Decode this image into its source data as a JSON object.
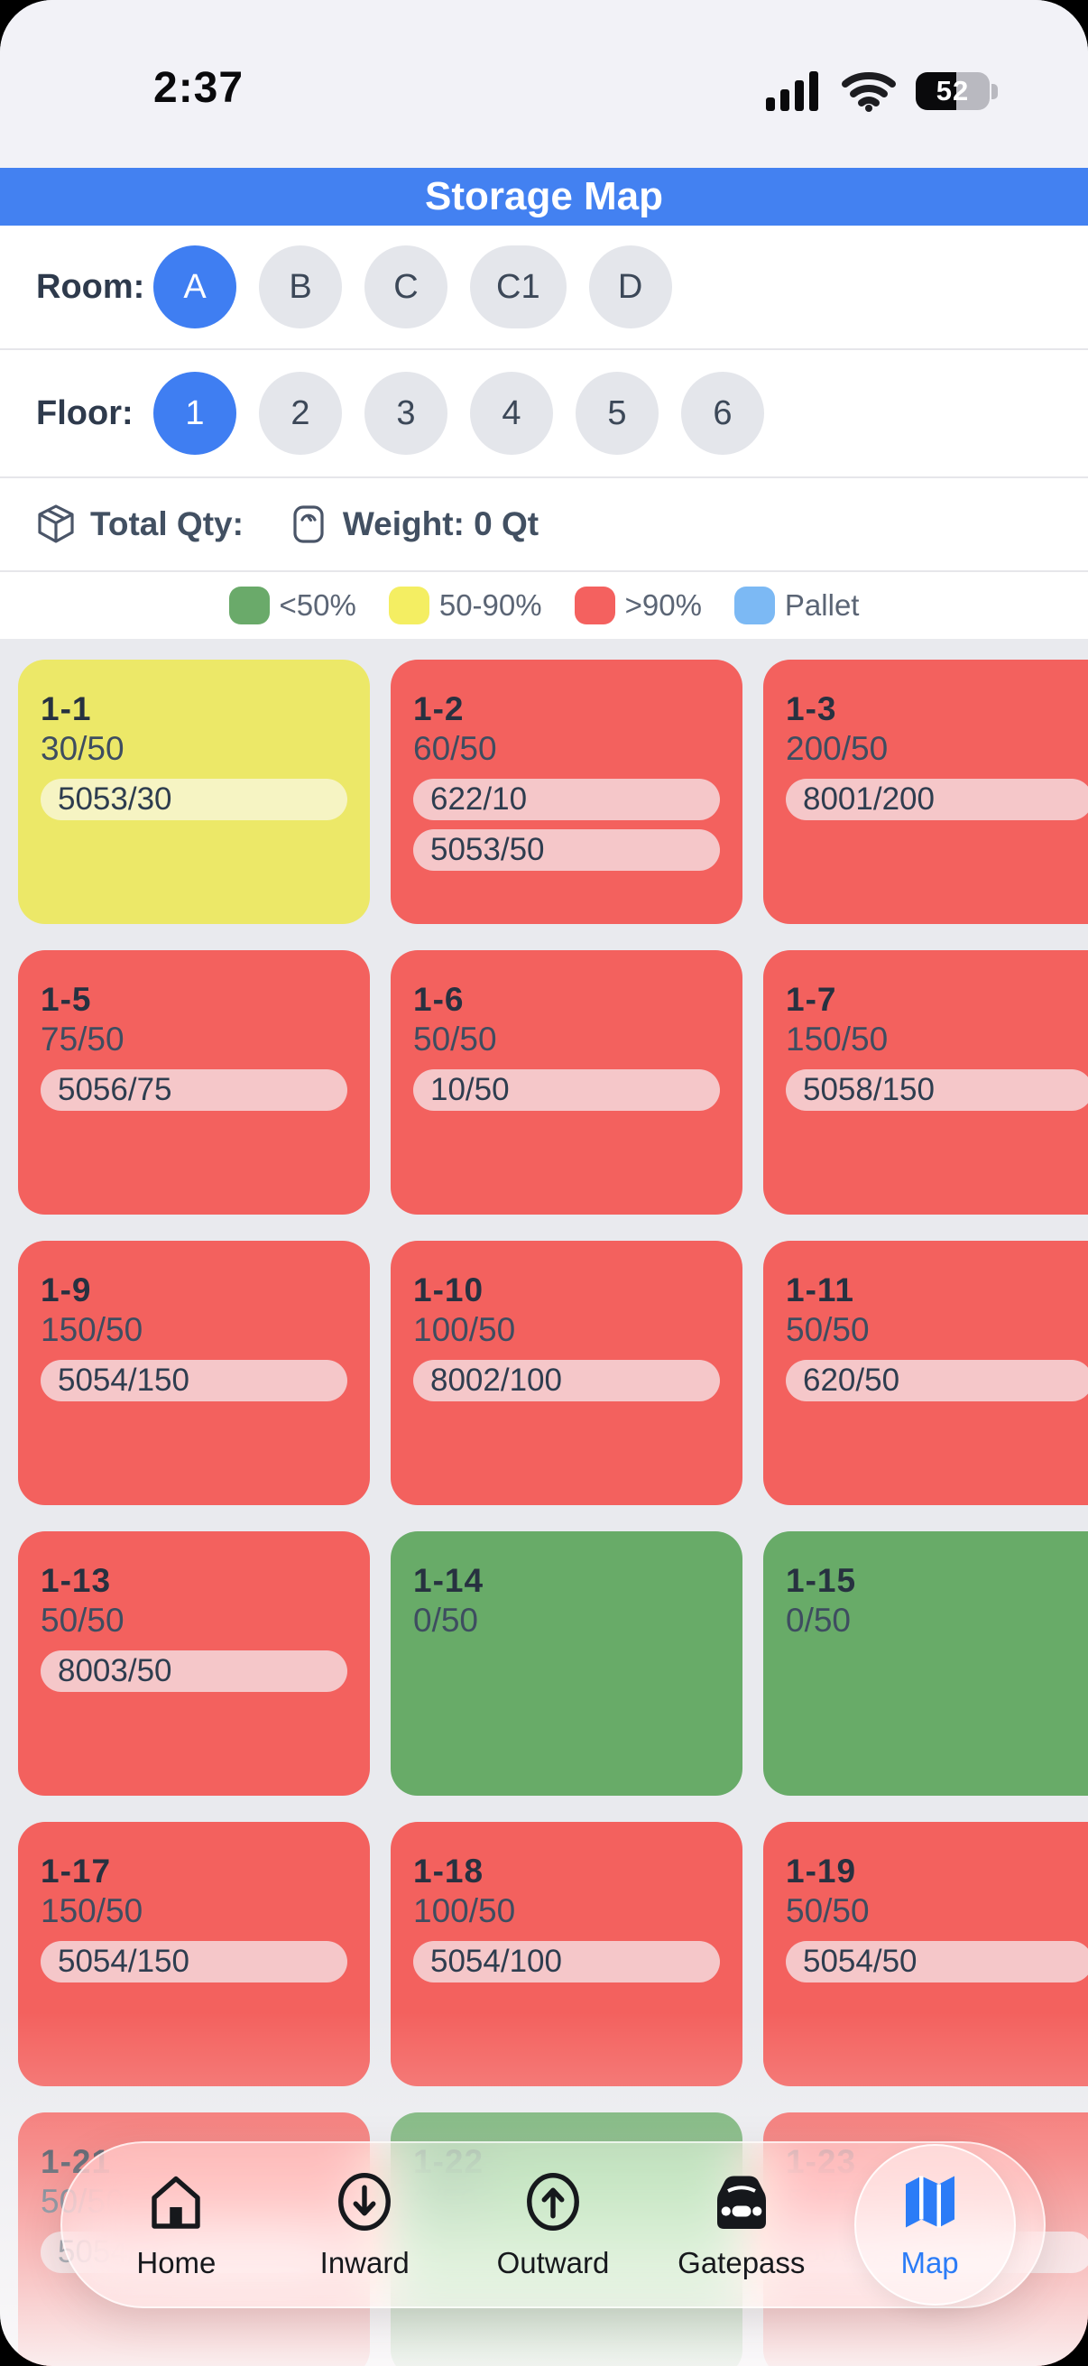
{
  "status_bar": {
    "time": "2:37",
    "battery_percent": "52",
    "icons": [
      "cellular-signal-icon",
      "wifi-icon",
      "battery-icon"
    ]
  },
  "header": {
    "title": "Storage Map"
  },
  "room_selector": {
    "label": "Room:",
    "options": [
      "A",
      "B",
      "C",
      "C1",
      "D"
    ],
    "selected": "A"
  },
  "floor_selector": {
    "label": "Floor:",
    "options": [
      "1",
      "2",
      "3",
      "4",
      "5",
      "6"
    ],
    "selected": "1"
  },
  "summary": {
    "total_qty_label": "Total Qty:",
    "weight_label": "Weight: 0 Qt",
    "icons": [
      "package-box-icon",
      "weight-scale-icon"
    ]
  },
  "legend": {
    "items": [
      {
        "label": "<50%",
        "color": "#6aaa6a"
      },
      {
        "label": "50-90%",
        "color": "#f4ee62"
      },
      {
        "label": ">90%",
        "color": "#f4615f"
      },
      {
        "label": "Pallet",
        "color": "#7cb9f4"
      }
    ]
  },
  "colors": {
    "accent_blue": "#3f7ef2",
    "header_blue": "#4381f1",
    "map_blue": "#2b7cf7",
    "cell_green": "#68ab68",
    "cell_yellow": "#ece868",
    "cell_red": "#f3615e",
    "pill_on_red": "#f5c7c9",
    "pill_on_yellow": "#f6f4c3"
  },
  "grid": {
    "cells": [
      {
        "id": "1-1",
        "fill": "yellow",
        "qty": "30/50",
        "pills": [
          "5053/30"
        ]
      },
      {
        "id": "1-2",
        "fill": "red",
        "qty": "60/50",
        "pills": [
          "622/10",
          "5053/50"
        ]
      },
      {
        "id": "1-3",
        "fill": "red",
        "qty": "200/50",
        "pills": [
          "8001/200"
        ]
      },
      {
        "id": "1-5",
        "fill": "red",
        "qty": "75/50",
        "pills": [
          "5056/75"
        ]
      },
      {
        "id": "1-6",
        "fill": "red",
        "qty": "50/50",
        "pills": [
          "10/50"
        ]
      },
      {
        "id": "1-7",
        "fill": "red",
        "qty": "150/50",
        "pills": [
          "5058/150"
        ]
      },
      {
        "id": "1-9",
        "fill": "red",
        "qty": "150/50",
        "pills": [
          "5054/150"
        ]
      },
      {
        "id": "1-10",
        "fill": "red",
        "qty": "100/50",
        "pills": [
          "8002/100"
        ]
      },
      {
        "id": "1-11",
        "fill": "red",
        "qty": "50/50",
        "pills": [
          "620/50"
        ]
      },
      {
        "id": "1-13",
        "fill": "red",
        "qty": "50/50",
        "pills": [
          "8003/50"
        ]
      },
      {
        "id": "1-14",
        "fill": "green",
        "qty": "0/50",
        "pills": []
      },
      {
        "id": "1-15",
        "fill": "green",
        "qty": "0/50",
        "pills": []
      },
      {
        "id": "1-17",
        "fill": "red",
        "qty": "150/50",
        "pills": [
          "5054/150"
        ]
      },
      {
        "id": "1-18",
        "fill": "red",
        "qty": "100/50",
        "pills": [
          "5054/100"
        ]
      },
      {
        "id": "1-19",
        "fill": "red",
        "qty": "50/50",
        "pills": [
          "5054/50"
        ]
      },
      {
        "id": "1-21",
        "fill": "red",
        "qty": "50/50",
        "pills": [
          "5054/50"
        ]
      },
      {
        "id": "1-22",
        "fill": "green",
        "qty": "0/50",
        "pills": []
      },
      {
        "id": "1-23",
        "fill": "red",
        "qty": "50/50",
        "pills": [
          "5054/50"
        ]
      }
    ]
  },
  "tab_bar": {
    "selected": "Map",
    "items": [
      {
        "label": "Home",
        "icon": "home-icon"
      },
      {
        "label": "Inward",
        "icon": "inward-icon"
      },
      {
        "label": "Outward",
        "icon": "outward-icon"
      },
      {
        "label": "Gatepass",
        "icon": "gatepass-icon"
      },
      {
        "label": "Map",
        "icon": "map-icon"
      }
    ]
  }
}
